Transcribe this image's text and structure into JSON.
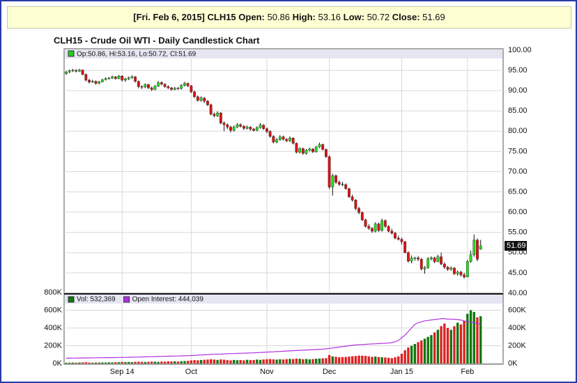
{
  "header": {
    "title": "[Fri. Feb 6, 2015] CLH15",
    "fields": [
      {
        "label": "Open:",
        "value": "50.86"
      },
      {
        "label": "High:",
        "value": "53.16"
      },
      {
        "label": "Low:",
        "value": "50.72"
      },
      {
        "label": "Close:",
        "value": "51.69"
      }
    ]
  },
  "chart_data": [
    {
      "type": "candlestick",
      "title": "CLH15 - Crude Oil WTI - Daily Candlestick Chart",
      "legend": "Op:50.86, Hi:53.16, Lo:50.72, Cl:51.69",
      "legend_color": "#22cc22",
      "up_color": "#22dd22",
      "down_color": "#dd1111",
      "last_label": "51.69",
      "ylim": [
        40,
        100
      ],
      "yticks": [
        {
          "value": 40,
          "label": "40.00"
        },
        {
          "value": 45,
          "label": "45.00"
        },
        {
          "value": 50,
          "label": "50.00"
        },
        {
          "value": 55,
          "label": "55.00"
        },
        {
          "value": 60,
          "label": "60.00"
        },
        {
          "value": 65,
          "label": "65.00"
        },
        {
          "value": 70,
          "label": "70.00"
        },
        {
          "value": 75,
          "label": "75.00"
        },
        {
          "value": 80,
          "label": "80.00"
        },
        {
          "value": 85,
          "label": "85.00"
        },
        {
          "value": 90,
          "label": "90.00"
        },
        {
          "value": 95,
          "label": "95.00"
        },
        {
          "value": 100,
          "label": "100.00"
        }
      ],
      "grid": true,
      "ohlc": [
        [
          94.2,
          94.9,
          93.9,
          94.6
        ],
        [
          94.6,
          95.2,
          94.3,
          94.9
        ],
        [
          94.9,
          95.4,
          94.6,
          95.0
        ],
        [
          95.0,
          95.3,
          94.5,
          94.8
        ],
        [
          94.8,
          95.4,
          94.6,
          95.1
        ],
        [
          95.1,
          95.2,
          93.8,
          94.0
        ],
        [
          94.0,
          94.2,
          92.3,
          92.6
        ],
        [
          92.6,
          92.9,
          91.8,
          92.1
        ],
        [
          92.1,
          92.7,
          91.9,
          92.3
        ],
        [
          92.3,
          92.5,
          91.5,
          91.8
        ],
        [
          91.8,
          92.4,
          91.6,
          92.2
        ],
        [
          92.2,
          92.9,
          92.0,
          92.7
        ],
        [
          92.7,
          93.3,
          92.5,
          93.0
        ],
        [
          93.0,
          93.4,
          92.7,
          93.1
        ],
        [
          93.1,
          93.7,
          92.9,
          93.4
        ],
        [
          93.4,
          93.6,
          92.7,
          93.0
        ],
        [
          93.0,
          93.9,
          92.8,
          93.6
        ],
        [
          93.6,
          93.8,
          92.3,
          92.6
        ],
        [
          92.6,
          93.2,
          92.2,
          92.9
        ],
        [
          92.9,
          93.5,
          92.6,
          93.2
        ],
        [
          93.2,
          93.8,
          92.9,
          93.4
        ],
        [
          93.4,
          93.6,
          92.0,
          92.3
        ],
        [
          92.3,
          92.5,
          90.6,
          91.0
        ],
        [
          91.0,
          91.3,
          90.4,
          90.9
        ],
        [
          90.9,
          91.8,
          90.6,
          91.5
        ],
        [
          91.5,
          91.7,
          90.4,
          90.7
        ],
        [
          90.7,
          91.0,
          89.9,
          90.3
        ],
        [
          90.3,
          91.4,
          90.1,
          91.1
        ],
        [
          91.1,
          92.4,
          90.9,
          92.0
        ],
        [
          92.0,
          92.3,
          91.3,
          91.6
        ],
        [
          91.6,
          91.8,
          90.7,
          91.0
        ],
        [
          91.0,
          91.3,
          90.4,
          90.7
        ],
        [
          90.7,
          90.9,
          90.0,
          90.3
        ],
        [
          90.3,
          90.9,
          90.1,
          90.6
        ],
        [
          90.6,
          90.9,
          90.2,
          90.5
        ],
        [
          90.5,
          91.6,
          90.3,
          91.3
        ],
        [
          91.3,
          92.2,
          91.0,
          91.8
        ],
        [
          91.8,
          92.0,
          90.9,
          91.2
        ],
        [
          91.2,
          91.4,
          89.4,
          89.7
        ],
        [
          89.7,
          90.0,
          88.2,
          88.5
        ],
        [
          88.5,
          88.8,
          87.3,
          87.6
        ],
        [
          87.6,
          88.6,
          87.3,
          88.2
        ],
        [
          88.2,
          88.4,
          87.0,
          87.4
        ],
        [
          87.4,
          87.7,
          86.2,
          86.5
        ],
        [
          86.5,
          86.8,
          83.9,
          84.2
        ],
        [
          84.2,
          84.6,
          83.4,
          83.8
        ],
        [
          83.8,
          84.9,
          83.5,
          84.5
        ],
        [
          84.5,
          84.7,
          81.7,
          82.0
        ],
        [
          82.0,
          82.4,
          80.0,
          81.6
        ],
        [
          81.6,
          81.9,
          80.5,
          81.0
        ],
        [
          81.0,
          81.3,
          79.7,
          80.2
        ],
        [
          80.2,
          81.4,
          79.9,
          81.0
        ],
        [
          81.0,
          82.0,
          80.7,
          81.6
        ],
        [
          81.6,
          81.9,
          80.9,
          81.2
        ],
        [
          81.2,
          81.5,
          80.3,
          80.7
        ],
        [
          80.7,
          81.4,
          80.4,
          81.0
        ],
        [
          81.0,
          81.2,
          80.1,
          80.5
        ],
        [
          80.5,
          80.8,
          79.9,
          80.2
        ],
        [
          80.2,
          81.2,
          80.0,
          80.9
        ],
        [
          80.9,
          82.0,
          80.6,
          81.5
        ],
        [
          81.5,
          81.7,
          80.3,
          80.6
        ],
        [
          80.6,
          80.9,
          79.5,
          79.9
        ],
        [
          79.9,
          80.2,
          78.4,
          78.7
        ],
        [
          78.7,
          79.0,
          77.0,
          77.3
        ],
        [
          77.3,
          78.3,
          77.0,
          77.9
        ],
        [
          77.9,
          79.0,
          77.6,
          78.6
        ],
        [
          78.6,
          78.9,
          77.7,
          78.0
        ],
        [
          78.0,
          78.3,
          77.3,
          77.6
        ],
        [
          77.6,
          78.7,
          77.3,
          78.3
        ],
        [
          78.3,
          78.5,
          76.7,
          77.0
        ],
        [
          77.0,
          77.2,
          74.5,
          74.8
        ],
        [
          74.8,
          76.0,
          74.5,
          75.7
        ],
        [
          75.7,
          75.9,
          74.2,
          74.5
        ],
        [
          74.5,
          75.6,
          74.2,
          75.3
        ],
        [
          75.3,
          75.9,
          75.0,
          75.6
        ],
        [
          75.6,
          75.8,
          74.6,
          74.9
        ],
        [
          74.9,
          76.4,
          74.7,
          76.1
        ],
        [
          76.1,
          77.2,
          75.8,
          76.7
        ],
        [
          76.7,
          76.9,
          75.2,
          75.5
        ],
        [
          75.5,
          75.7,
          73.4,
          73.7
        ],
        [
          73.7,
          74.0,
          65.7,
          66.2
        ],
        [
          66.2,
          69.5,
          64.1,
          69.0
        ],
        [
          69.0,
          69.3,
          67.0,
          67.4
        ],
        [
          67.4,
          67.8,
          66.5,
          66.9
        ],
        [
          66.9,
          67.5,
          66.4,
          66.8
        ],
        [
          66.8,
          67.1,
          65.5,
          65.8
        ],
        [
          65.8,
          66.0,
          63.5,
          63.8
        ],
        [
          63.8,
          64.3,
          62.6,
          63.0
        ],
        [
          63.0,
          63.2,
          60.5,
          60.9
        ],
        [
          60.9,
          61.3,
          59.5,
          59.9
        ],
        [
          59.9,
          60.2,
          57.8,
          58.1
        ],
        [
          58.1,
          58.4,
          56.2,
          56.5
        ],
        [
          56.5,
          57.0,
          55.6,
          56.0
        ],
        [
          56.0,
          56.3,
          54.9,
          55.3
        ],
        [
          55.3,
          57.5,
          55.0,
          57.1
        ],
        [
          57.1,
          57.4,
          55.1,
          55.5
        ],
        [
          55.5,
          58.4,
          55.2,
          57.9
        ],
        [
          57.9,
          58.2,
          56.1,
          56.5
        ],
        [
          56.5,
          56.8,
          55.0,
          55.3
        ],
        [
          55.3,
          55.9,
          54.5,
          54.8
        ],
        [
          54.8,
          55.1,
          53.3,
          53.6
        ],
        [
          53.6,
          54.2,
          53.0,
          53.3
        ],
        [
          53.3,
          53.7,
          52.0,
          52.7
        ],
        [
          52.7,
          52.9,
          49.8,
          50.0
        ],
        [
          50.0,
          50.3,
          47.6,
          47.9
        ],
        [
          47.9,
          49.3,
          47.4,
          48.7
        ],
        [
          48.7,
          49.0,
          48.0,
          48.7
        ],
        [
          48.7,
          49.2,
          47.9,
          48.4
        ],
        [
          48.4,
          48.7,
          45.6,
          46.0
        ],
        [
          46.0,
          46.7,
          44.8,
          46.3
        ],
        [
          46.3,
          48.9,
          46.0,
          48.5
        ],
        [
          48.5,
          49.1,
          48.1,
          48.7
        ],
        [
          48.7,
          49.0,
          47.4,
          47.8
        ],
        [
          47.8,
          49.5,
          47.6,
          49.0
        ],
        [
          49.0,
          50.0,
          46.9,
          47.2
        ],
        [
          47.2,
          47.6,
          46.0,
          46.4
        ],
        [
          46.4,
          46.7,
          45.5,
          45.9
        ],
        [
          45.9,
          46.6,
          45.5,
          46.2
        ],
        [
          46.2,
          46.4,
          44.5,
          44.8
        ],
        [
          44.8,
          45.6,
          44.3,
          45.2
        ],
        [
          45.2,
          45.5,
          44.1,
          44.5
        ],
        [
          44.5,
          45.0,
          43.6,
          44.0
        ],
        [
          44.0,
          48.2,
          43.9,
          47.8
        ],
        [
          47.8,
          50.5,
          47.5,
          49.5
        ],
        [
          49.5,
          54.5,
          49.0,
          53.1
        ],
        [
          53.1,
          53.5,
          47.9,
          48.4
        ],
        [
          50.86,
          53.16,
          50.72,
          51.69
        ]
      ]
    },
    {
      "type": "volume",
      "up_color": "#117711",
      "down_color": "#dd2222",
      "ylim": [
        0,
        800000
      ],
      "y2lim": [
        0,
        800000
      ],
      "yticks": [
        {
          "value": 0,
          "label": "0K"
        },
        {
          "value": 200000,
          "label": "200K"
        },
        {
          "value": 400000,
          "label": "400K"
        },
        {
          "value": 600000,
          "label": "600K"
        },
        {
          "value": 800000,
          "label": "800K"
        }
      ],
      "y2ticks": [
        {
          "value": 0,
          "label": "0K"
        },
        {
          "value": 200000,
          "label": "200K"
        },
        {
          "value": 400000,
          "label": "400K"
        },
        {
          "value": 600000,
          "label": "600K"
        }
      ],
      "xticks": [
        {
          "value": 17,
          "label": "Sep 14"
        },
        {
          "value": 38,
          "label": "Oct"
        },
        {
          "value": 61,
          "label": "Nov"
        },
        {
          "value": 80,
          "label": "Dec"
        },
        {
          "value": 102,
          "label": "Jan 15"
        },
        {
          "value": 122,
          "label": "Feb"
        }
      ],
      "series": [
        {
          "name": "Vol: 532,369",
          "color": "#117711",
          "values": [
            8000,
            9000,
            10000,
            9000,
            11000,
            12000,
            14000,
            10000,
            9000,
            11000,
            10000,
            12000,
            11000,
            13000,
            12000,
            14000,
            15000,
            18000,
            16000,
            17000,
            15000,
            19000,
            20000,
            18000,
            17000,
            19000,
            21000,
            20000,
            18000,
            22000,
            20000,
            24000,
            23000,
            25000,
            22000,
            26000,
            28000,
            30000,
            35000,
            38000,
            36000,
            40000,
            42000,
            45000,
            48000,
            44000,
            40000,
            46000,
            43000,
            38000,
            35000,
            40000,
            37000,
            39000,
            36000,
            42000,
            38000,
            40000,
            44000,
            41000,
            45000,
            48000,
            50000,
            46000,
            44000,
            47000,
            45000,
            49000,
            52000,
            50000,
            55000,
            53000,
            48000,
            51000,
            47000,
            50000,
            54000,
            56000,
            58000,
            60000,
            95000,
            80000,
            75000,
            70000,
            72000,
            74000,
            78000,
            82000,
            85000,
            90000,
            88000,
            86000,
            80000,
            75000,
            78000,
            72000,
            70000,
            68000,
            65000,
            60000,
            70000,
            80000,
            110000,
            150000,
            180000,
            200000,
            220000,
            240000,
            260000,
            280000,
            300000,
            320000,
            350000,
            380000,
            420000,
            450000,
            400000,
            380000,
            420000,
            460000,
            440000,
            480000,
            560000,
            600000,
            580000,
            520000,
            532369
          ]
        },
        {
          "name": "Open Interest: 444,039",
          "color": "#b030e0",
          "values": [
            60000,
            60000,
            61000,
            61000,
            62000,
            62000,
            63000,
            63000,
            64000,
            64000,
            65000,
            65000,
            66000,
            66000,
            67000,
            67000,
            68000,
            68000,
            69000,
            70000,
            71000,
            72000,
            73000,
            74000,
            75000,
            76000,
            77000,
            78000,
            79000,
            80000,
            81000,
            82000,
            83000,
            84000,
            85000,
            86000,
            87000,
            88000,
            90000,
            92000,
            94000,
            96000,
            98000,
            100000,
            102000,
            104000,
            105000,
            106000,
            108000,
            110000,
            111000,
            112000,
            114000,
            115000,
            116000,
            118000,
            119000,
            120000,
            122000,
            124000,
            126000,
            128000,
            130000,
            132000,
            134000,
            136000,
            138000,
            140000,
            142000,
            144000,
            146000,
            148000,
            150000,
            152000,
            154000,
            156000,
            158000,
            160000,
            162000,
            165000,
            170000,
            175000,
            180000,
            185000,
            190000,
            195000,
            200000,
            205000,
            210000,
            212000,
            214000,
            216000,
            218000,
            220000,
            222000,
            224000,
            226000,
            228000,
            230000,
            235000,
            245000,
            260000,
            290000,
            320000,
            360000,
            400000,
            440000,
            460000,
            470000,
            480000,
            485000,
            490000,
            495000,
            500000,
            505000,
            505000,
            500000,
            500000,
            498000,
            495000,
            490000,
            480000,
            470000,
            465000,
            460000,
            452000,
            444039
          ]
        }
      ]
    }
  ]
}
